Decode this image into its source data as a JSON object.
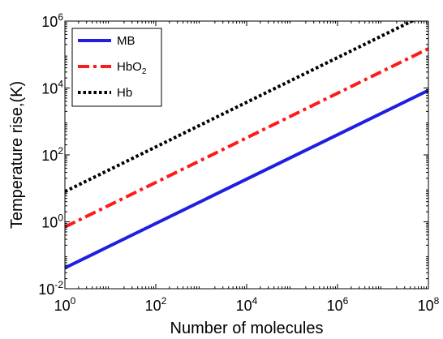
{
  "chart_data": {
    "type": "line",
    "xlabel": "Number of molecules",
    "ylabel": "Temperature rise,(K)",
    "xscale": "log",
    "yscale": "log",
    "xlim": [
      1,
      100000000
    ],
    "ylim": [
      0.01,
      1000000
    ],
    "x_ticks": [
      {
        "base": "10",
        "exp": "0"
      },
      {
        "base": "10",
        "exp": "2"
      },
      {
        "base": "10",
        "exp": "4"
      },
      {
        "base": "10",
        "exp": "6"
      },
      {
        "base": "10",
        "exp": "8"
      }
    ],
    "y_ticks": [
      {
        "base": "10",
        "exp": "-2"
      },
      {
        "base": "10",
        "exp": "0"
      },
      {
        "base": "10",
        "exp": "2"
      },
      {
        "base": "10",
        "exp": "4"
      },
      {
        "base": "10",
        "exp": "6"
      }
    ],
    "grid": false,
    "legend_position": "top-left",
    "series": [
      {
        "name": "MB",
        "name_main": "MB",
        "name_sub": "",
        "color": "#1f1fe0",
        "style": "solid",
        "x": [
          1,
          100000000
        ],
        "y": [
          0.042,
          8500
        ]
      },
      {
        "name": "HbO2",
        "name_main": "HbO",
        "name_sub": "2",
        "color": "#ff1a1a",
        "style": "dash-dot",
        "x": [
          1,
          100000000
        ],
        "y": [
          0.7,
          150000
        ]
      },
      {
        "name": "Hb",
        "name_main": "Hb",
        "name_sub": "",
        "color": "#000000",
        "style": "dotted",
        "x": [
          1,
          100000000
        ],
        "y": [
          8,
          1750000
        ]
      }
    ]
  }
}
